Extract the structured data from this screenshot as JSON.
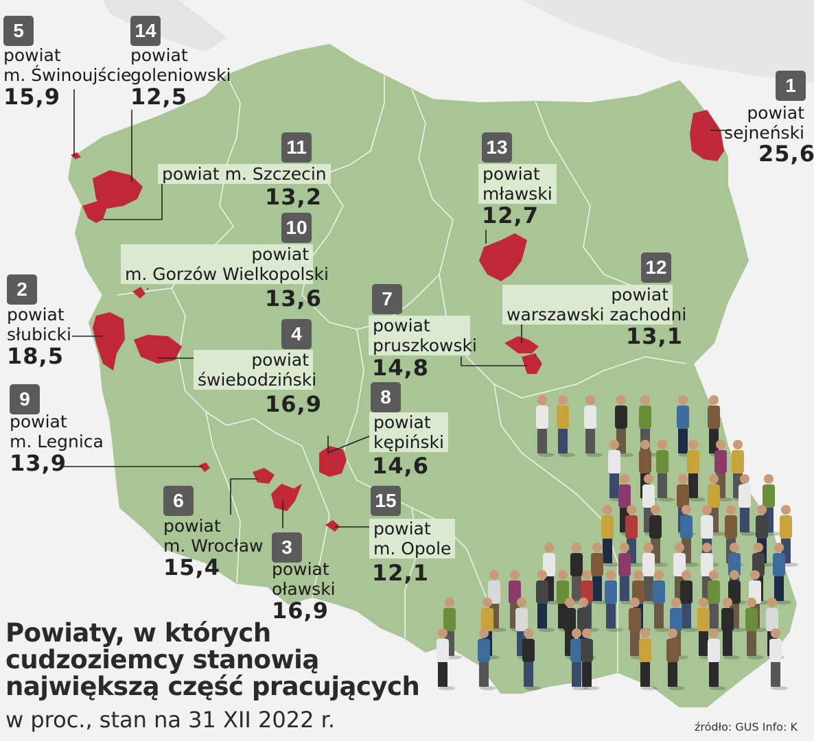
{
  "title_lines": [
    "Powiaty, w których",
    "cudzoziemcy stanowią",
    "największą część pracujących"
  ],
  "subtitle": "w proc., stan na 31 XII 2022 r.",
  "source": "źródło: GUS  Info: K",
  "colors": {
    "land": "#a9c495",
    "highlight": "#c0283a",
    "badge": "#5a5a5a",
    "sea": "#e9e9e9"
  },
  "districts": [
    {
      "rank": "1",
      "line1": "powiat",
      "line2": "sejneński",
      "value": "25,6"
    },
    {
      "rank": "2",
      "line1": "powiat",
      "line2": "słubicki",
      "value": "18,5"
    },
    {
      "rank": "3",
      "line1": "powiat",
      "line2": "oławski",
      "value": "16,9"
    },
    {
      "rank": "4",
      "line1": "powiat",
      "line2": "świebodziński",
      "value": "16,9"
    },
    {
      "rank": "5",
      "line1": "powiat",
      "line2": "m. Świnoujście",
      "value": "15,9"
    },
    {
      "rank": "6",
      "line1": "powiat",
      "line2": "m. Wrocław",
      "value": "15,4"
    },
    {
      "rank": "7",
      "line1": "powiat",
      "line2": "pruszkowski",
      "value": "14,8"
    },
    {
      "rank": "8",
      "line1": "powiat",
      "line2": "kępiński",
      "value": "14,6"
    },
    {
      "rank": "9",
      "line1": "powiat",
      "line2": "m. Legnica",
      "value": "13,9"
    },
    {
      "rank": "10",
      "line1": "powiat",
      "line2": "m. Gorzów Wielkopolski",
      "value": "13,6"
    },
    {
      "rank": "11",
      "line1": "powiat m. Szczecin",
      "line2": "",
      "value": "13,2"
    },
    {
      "rank": "12",
      "line1": "powiat",
      "line2": "warszawski zachodni",
      "value": "13,1"
    },
    {
      "rank": "13",
      "line1": "powiat",
      "line2": "mławski",
      "value": "12,7"
    },
    {
      "rank": "14",
      "line1": "powiat",
      "line2": "goleniowski",
      "value": "12,5"
    },
    {
      "rank": "15",
      "line1": "powiat",
      "line2": "m. Opole",
      "value": "12,1"
    }
  ]
}
